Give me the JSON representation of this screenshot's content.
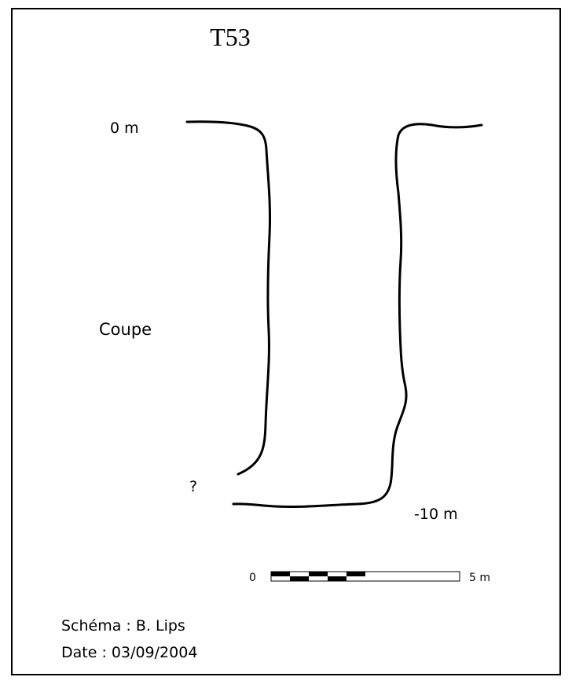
{
  "title": "T53",
  "section_label": "Coupe",
  "depth_top_label": "0 m",
  "depth_bottom_label": "-10 m",
  "unknown_marker": "?",
  "scale_bar": {
    "start_label": "0",
    "end_label": "5 m",
    "segments": 10,
    "length_m": 5
  },
  "credits": {
    "author_line": "Schéma : B. Lips",
    "date_line": "Date : 03/09/2004"
  },
  "colors": {
    "ink": "#000000",
    "paper": "#ffffff"
  }
}
